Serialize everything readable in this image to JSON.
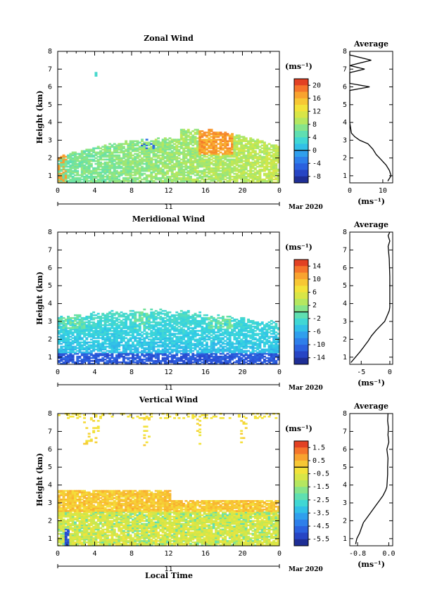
{
  "page": {
    "date_label": "Mar 2020",
    "day_label": "11",
    "xlabel": "Local Time"
  },
  "chart_data": [
    {
      "type": "heatmap",
      "title": "Zonal Wind",
      "ylabel": "Height (km)",
      "x_ticks": [
        "0",
        "4",
        "8",
        "12",
        "16",
        "20",
        "0"
      ],
      "y_ticks": [
        "1",
        "2",
        "3",
        "4",
        "5",
        "6",
        "7",
        "8"
      ],
      "xlim": [
        0,
        24
      ],
      "ylim": [
        0.6,
        8
      ],
      "unit": "(ms⁻¹)",
      "colorbar_ticks": [
        "20",
        "16",
        "12",
        "8",
        "4",
        "0",
        "-4",
        "-8"
      ],
      "colorbar_range": [
        -10,
        22
      ],
      "average": {
        "title": "Average",
        "xlabel": "(ms⁻¹)",
        "x_ticks": [
          "0",
          "10"
        ],
        "xlim": [
          0,
          13
        ],
        "height": [
          0.7,
          1.0,
          1.3,
          1.6,
          1.9,
          2.2,
          2.5,
          2.8,
          3.0,
          3.2,
          3.4,
          4.0,
          5.0,
          5.8,
          6.0,
          6.2,
          6.8,
          7.0,
          7.2,
          7.5,
          7.8,
          8.0
        ],
        "value": [
          11.5,
          12.5,
          12.0,
          11.0,
          9.5,
          8.0,
          7.0,
          5.5,
          3.0,
          1.5,
          0.5,
          0.0,
          0.0,
          0.0,
          6.0,
          0.0,
          0.0,
          4.5,
          0.0,
          6.5,
          0.0,
          0.0
        ]
      }
    },
    {
      "type": "heatmap",
      "title": "Meridional Wind",
      "ylabel": "Height (km)",
      "x_ticks": [
        "0",
        "4",
        "8",
        "12",
        "16",
        "20",
        "0"
      ],
      "y_ticks": [
        "1",
        "2",
        "3",
        "4",
        "5",
        "6",
        "7",
        "8"
      ],
      "xlim": [
        0,
        24
      ],
      "ylim": [
        0.6,
        8
      ],
      "unit": "(ms⁻¹)",
      "colorbar_ticks": [
        "14",
        "10",
        "6",
        "2",
        "-2",
        "-6",
        "-10",
        "-14"
      ],
      "colorbar_range": [
        -16,
        16
      ],
      "average": {
        "title": "Average",
        "xlabel": "(ms⁻¹)",
        "x_ticks": [
          "-5",
          "0"
        ],
        "xlim": [
          -7,
          0.5
        ],
        "height": [
          0.7,
          1.0,
          1.3,
          1.6,
          1.9,
          2.2,
          2.5,
          2.8,
          3.0,
          3.3,
          3.6,
          3.8,
          4.5,
          5.5,
          6.5,
          7.2,
          7.5,
          7.8,
          8.0
        ],
        "value": [
          -6.8,
          -6.0,
          -5.2,
          -4.5,
          -3.8,
          -3.2,
          -2.4,
          -1.5,
          -0.9,
          -0.5,
          -0.1,
          0.0,
          0.0,
          0.0,
          -0.1,
          -0.3,
          0.0,
          -0.3,
          0.0
        ]
      }
    },
    {
      "type": "heatmap",
      "title": "Vertical Wind",
      "ylabel": "Height (km)",
      "x_ticks": [
        "0",
        "4",
        "8",
        "12",
        "16",
        "20",
        "0"
      ],
      "y_ticks": [
        "1",
        "2",
        "3",
        "4",
        "5",
        "6",
        "7",
        "8"
      ],
      "xlim": [
        0,
        24
      ],
      "ylim": [
        0.6,
        8
      ],
      "unit": "(ms⁻¹)",
      "colorbar_ticks": [
        "1.5",
        "0.5",
        "-0.5",
        "-1.5",
        "-2.5",
        "-3.5",
        "-4.5",
        "-5.5"
      ],
      "colorbar_range": [
        -6,
        2
      ],
      "average": {
        "title": "Average",
        "xlabel": "(ms⁻¹)",
        "x_ticks": [
          "-0.8",
          "0.0"
        ],
        "xlim": [
          -1.0,
          0.1
        ],
        "height": [
          0.7,
          1.0,
          1.3,
          1.6,
          1.9,
          2.2,
          2.5,
          2.8,
          3.1,
          3.4,
          3.7,
          3.9,
          4.2,
          4.6,
          5.0,
          5.5,
          6.0,
          6.4,
          6.8,
          7.2,
          7.6,
          8.0
        ],
        "value": [
          -0.85,
          -0.82,
          -0.75,
          -0.7,
          -0.65,
          -0.55,
          -0.45,
          -0.35,
          -0.25,
          -0.15,
          -0.08,
          -0.05,
          -0.04,
          -0.03,
          -0.03,
          -0.02,
          -0.05,
          0.0,
          -0.02,
          -0.01,
          -0.03,
          -0.02
        ]
      }
    }
  ]
}
